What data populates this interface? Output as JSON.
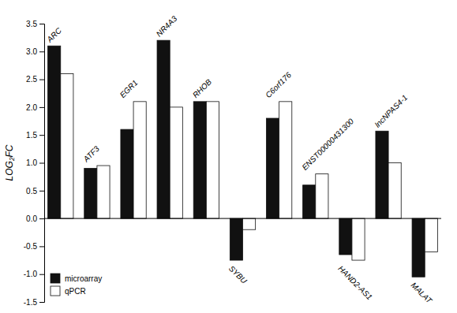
{
  "chart_data": {
    "type": "bar",
    "y_label": "LOG₂FC",
    "categories": [
      "ARC",
      "ATF3",
      "EGR1",
      "NR4A3",
      "RHOB",
      "SYBU",
      "C6orf176",
      "ENST00000431300",
      "HAND2-AS1",
      "lncNPAS4-1",
      "MALAT"
    ],
    "series": [
      {
        "name": "microarray",
        "color": "#111111",
        "values": [
          3.1,
          0.9,
          1.6,
          3.2,
          2.1,
          -0.75,
          1.8,
          0.6,
          -0.65,
          1.57,
          -1.05
        ]
      },
      {
        "name": "qPCR",
        "color": "#ffffff",
        "values": [
          2.6,
          0.95,
          2.1,
          2.0,
          2.1,
          -0.2,
          2.1,
          0.8,
          -0.75,
          1.0,
          -0.6
        ]
      }
    ],
    "ylim": [
      -1.5,
      3.5
    ],
    "yticks": [
      -1.5,
      {
        "value": -1.0,
        "label": "-1.0"
      },
      -0.5,
      {
        "value": 0.0,
        "label": "0.0"
      },
      0.5,
      {
        "value": 1.0,
        "label": "1.0"
      },
      1.5,
      {
        "value": 2.0,
        "label": "2.0"
      },
      2.5,
      {
        "value": 3.0,
        "label": "3.0"
      },
      3.5
    ],
    "grid": false,
    "legend": "lower left",
    "tick_labels": "y"
  }
}
